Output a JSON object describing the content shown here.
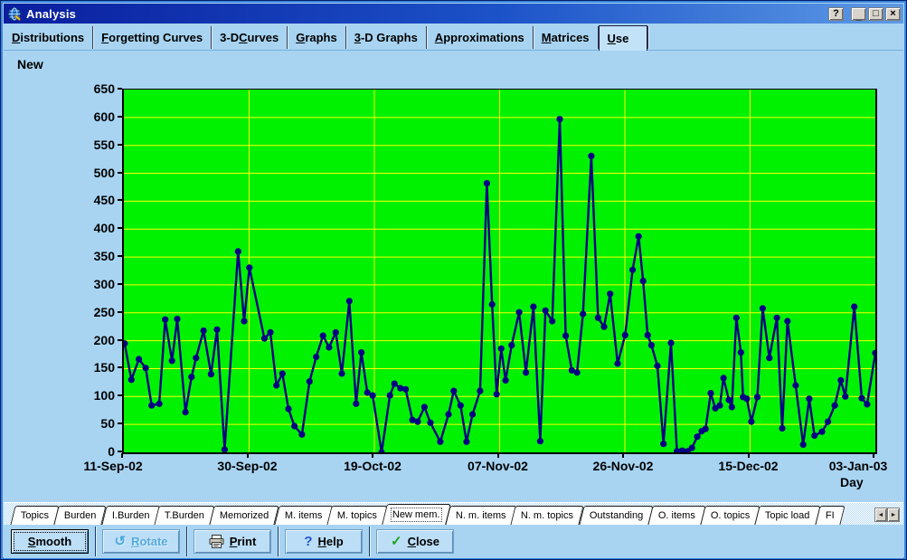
{
  "window": {
    "title": "Analysis",
    "controls": [
      {
        "name": "help-caption-button",
        "glyph": "?"
      },
      {
        "name": "minimize-button",
        "glyph": "_"
      },
      {
        "name": "maximize-button",
        "glyph": "□"
      },
      {
        "name": "close-button",
        "glyph": "×"
      }
    ]
  },
  "top_tabs": [
    {
      "label": "Distributions",
      "accel": 0,
      "selected": false
    },
    {
      "label": "Forgetting Curves",
      "accel": 0,
      "selected": false
    },
    {
      "label": "3-D Curves",
      "accel": 4,
      "selected": false
    },
    {
      "label": "Graphs",
      "accel": 0,
      "selected": false
    },
    {
      "label": "3-D Graphs",
      "accel": 0,
      "selected": false
    },
    {
      "label": "Approximations",
      "accel": 0,
      "selected": false
    },
    {
      "label": "Matrices",
      "accel": 0,
      "selected": false
    },
    {
      "label": "Use",
      "accel": 0,
      "selected": true
    }
  ],
  "chart_header": "New",
  "chart_data": {
    "type": "line",
    "title": "New",
    "xlabel": "Day",
    "x_tick_labels": [
      "11-Sep-02",
      "30-Sep-02",
      "19-Oct-02",
      "07-Nov-02",
      "26-Nov-02",
      "15-Dec-02",
      "03-Jan-03"
    ],
    "ylim": [
      0,
      650
    ],
    "y_ticks": [
      0,
      50,
      100,
      150,
      200,
      250,
      300,
      350,
      400,
      450,
      500,
      550,
      600,
      650
    ],
    "grid": true,
    "bg_color": "#00f200",
    "grid_color": "#ffff00",
    "line_color": "#000085",
    "points": [
      [
        0.001,
        195
      ],
      [
        0.01,
        130
      ],
      [
        0.02,
        167
      ],
      [
        0.029,
        151
      ],
      [
        0.037,
        84
      ],
      [
        0.047,
        87
      ],
      [
        0.055,
        238
      ],
      [
        0.064,
        164
      ],
      [
        0.071,
        239
      ],
      [
        0.082,
        72
      ],
      [
        0.09,
        135
      ],
      [
        0.096,
        169
      ],
      [
        0.106,
        218
      ],
      [
        0.116,
        140
      ],
      [
        0.124,
        220
      ],
      [
        0.134,
        5
      ],
      [
        0.152,
        360
      ],
      [
        0.16,
        235
      ],
      [
        0.167,
        331
      ],
      [
        0.187,
        204
      ],
      [
        0.195,
        215
      ],
      [
        0.203,
        120
      ],
      [
        0.211,
        141
      ],
      [
        0.219,
        78
      ],
      [
        0.227,
        47
      ],
      [
        0.237,
        32
      ],
      [
        0.247,
        127
      ],
      [
        0.256,
        171
      ],
      [
        0.265,
        209
      ],
      [
        0.273,
        188
      ],
      [
        0.282,
        215
      ],
      [
        0.29,
        141
      ],
      [
        0.3,
        271
      ],
      [
        0.309,
        87
      ],
      [
        0.316,
        179
      ],
      [
        0.324,
        107
      ],
      [
        0.331,
        102
      ],
      [
        0.343,
        0
      ],
      [
        0.354,
        102
      ],
      [
        0.36,
        123
      ],
      [
        0.368,
        115
      ],
      [
        0.375,
        113
      ],
      [
        0.384,
        58
      ],
      [
        0.391,
        55
      ],
      [
        0.4,
        81
      ],
      [
        0.408,
        53
      ],
      [
        0.421,
        19
      ],
      [
        0.432,
        68
      ],
      [
        0.439,
        110
      ],
      [
        0.448,
        84
      ],
      [
        0.456,
        19
      ],
      [
        0.464,
        68
      ],
      [
        0.474,
        110
      ],
      [
        0.483,
        482
      ],
      [
        0.49,
        265
      ],
      [
        0.496,
        104
      ],
      [
        0.502,
        186
      ],
      [
        0.508,
        129
      ],
      [
        0.516,
        192
      ],
      [
        0.526,
        251
      ],
      [
        0.535,
        143
      ],
      [
        0.545,
        261
      ],
      [
        0.554,
        20
      ],
      [
        0.561,
        254
      ],
      [
        0.57,
        235
      ],
      [
        0.58,
        597
      ],
      [
        0.588,
        209
      ],
      [
        0.596,
        147
      ],
      [
        0.603,
        143
      ],
      [
        0.611,
        248
      ],
      [
        0.622,
        531
      ],
      [
        0.631,
        241
      ],
      [
        0.639,
        225
      ],
      [
        0.647,
        284
      ],
      [
        0.657,
        159
      ],
      [
        0.667,
        210
      ],
      [
        0.677,
        327
      ],
      [
        0.685,
        387
      ],
      [
        0.691,
        307
      ],
      [
        0.697,
        210
      ],
      [
        0.702,
        192
      ],
      [
        0.71,
        155
      ],
      [
        0.718,
        15
      ],
      [
        0.728,
        196
      ],
      [
        0.736,
        2
      ],
      [
        0.743,
        3
      ],
      [
        0.75,
        2
      ],
      [
        0.756,
        8
      ],
      [
        0.763,
        28
      ],
      [
        0.769,
        38
      ],
      [
        0.774,
        42
      ],
      [
        0.781,
        106
      ],
      [
        0.787,
        79
      ],
      [
        0.793,
        84
      ],
      [
        0.798,
        133
      ],
      [
        0.805,
        94
      ],
      [
        0.809,
        81
      ],
      [
        0.815,
        241
      ],
      [
        0.821,
        179
      ],
      [
        0.824,
        99
      ],
      [
        0.829,
        96
      ],
      [
        0.835,
        55
      ],
      [
        0.843,
        99
      ],
      [
        0.85,
        258
      ],
      [
        0.859,
        169
      ],
      [
        0.869,
        241
      ],
      [
        0.876,
        43
      ],
      [
        0.883,
        235
      ],
      [
        0.894,
        120
      ],
      [
        0.904,
        14
      ],
      [
        0.912,
        96
      ],
      [
        0.919,
        30
      ],
      [
        0.929,
        37
      ],
      [
        0.937,
        55
      ],
      [
        0.946,
        84
      ],
      [
        0.954,
        129
      ],
      [
        0.96,
        100
      ],
      [
        0.972,
        261
      ],
      [
        0.982,
        97
      ],
      [
        0.989,
        86
      ],
      [
        1.0,
        178
      ]
    ]
  },
  "bottom_tabs": {
    "items": [
      "Topics",
      "Burden",
      "I.Burden",
      "T.Burden",
      "Memorized",
      "M. items",
      "M. topics",
      "New mem.",
      "N. m. items",
      "N. m. topics",
      "Outstanding",
      "O. items",
      "O. topics",
      "Topic load",
      "FI"
    ],
    "selected": "New mem.",
    "scroll_left": "◄",
    "scroll_right": "►"
  },
  "buttons": [
    {
      "label": "Smooth",
      "accel": 0,
      "state": "focused",
      "icon": ""
    },
    {
      "label": "Rotate",
      "accel": 0,
      "state": "disabled",
      "icon": "rotate-icon"
    },
    {
      "label": "Print",
      "accel": 0,
      "state": "normal",
      "icon": "printer-icon"
    },
    {
      "label": "Help",
      "accel": 0,
      "state": "normal",
      "icon": "question-icon"
    },
    {
      "label": "Close",
      "accel": 0,
      "state": "normal",
      "icon": "check-icon"
    }
  ]
}
